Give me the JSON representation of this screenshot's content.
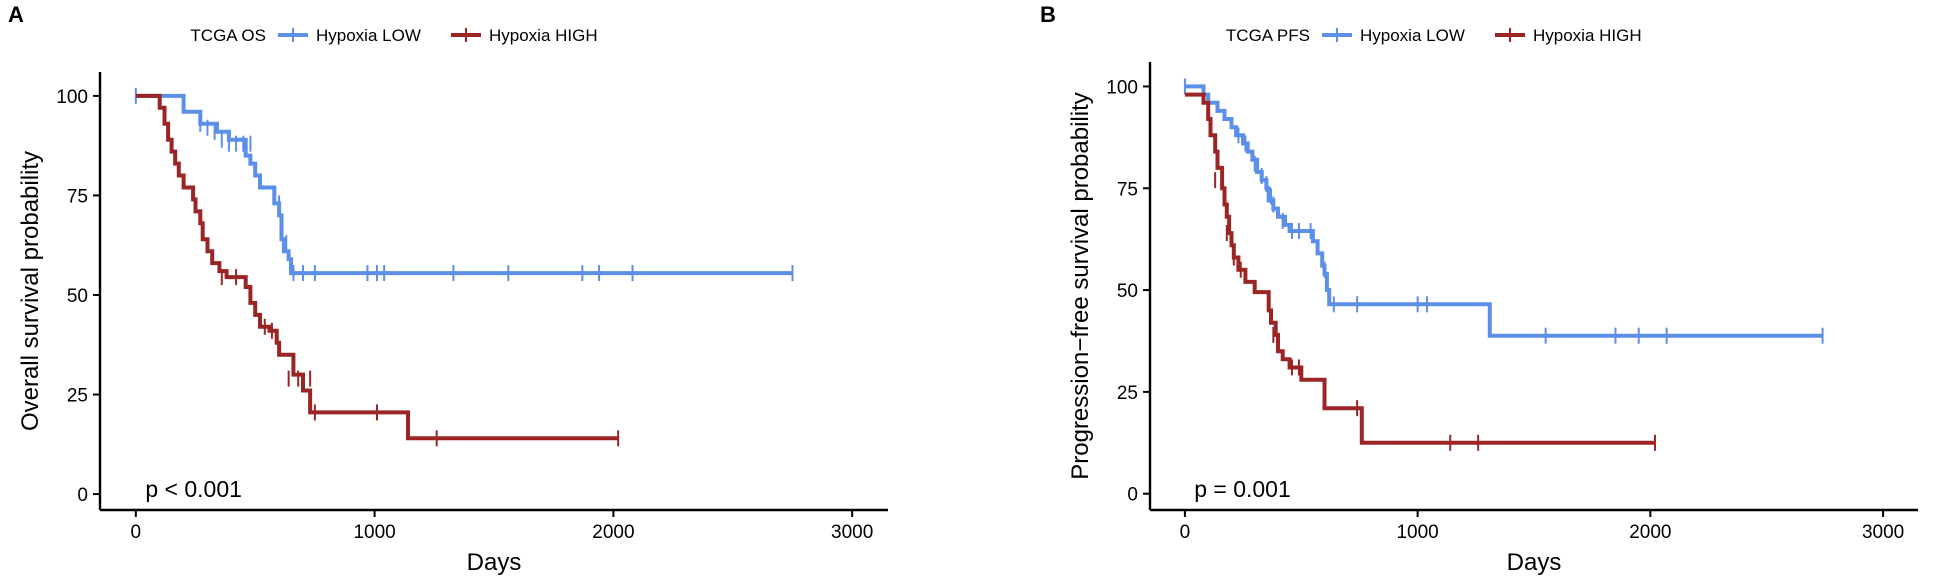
{
  "colors": {
    "low": "#5B8FE8",
    "high": "#9B2424",
    "axis": "#000000"
  },
  "chart_data": [
    {
      "type": "line",
      "panel_label": "A",
      "legend_title": "TCGA OS",
      "title": "",
      "xlabel": "Days",
      "ylabel": "Overall survival probability",
      "xlim": [
        -150,
        3150
      ],
      "ylim": [
        -4,
        106
      ],
      "xticks": [
        0,
        1000,
        2000,
        3000
      ],
      "yticks": [
        0,
        25,
        50,
        75,
        100
      ],
      "annotation": "p < 0.001",
      "series": [
        {
          "name": "Hypoxia LOW",
          "steps": [
            [
              0,
              100
            ],
            [
              200,
              100
            ],
            [
              200,
              96
            ],
            [
              270,
              96
            ],
            [
              270,
              93
            ],
            [
              340,
              93
            ],
            [
              340,
              91
            ],
            [
              390,
              91
            ],
            [
              390,
              89
            ],
            [
              460,
              89
            ],
            [
              460,
              85
            ],
            [
              480,
              85
            ],
            [
              480,
              83
            ],
            [
              500,
              83
            ],
            [
              500,
              80
            ],
            [
              520,
              80
            ],
            [
              520,
              77
            ],
            [
              580,
              77
            ],
            [
              580,
              73
            ],
            [
              600,
              73
            ],
            [
              600,
              70
            ],
            [
              610,
              70
            ],
            [
              610,
              64
            ],
            [
              620,
              64
            ],
            [
              620,
              61
            ],
            [
              640,
              61
            ],
            [
              640,
              59
            ],
            [
              650,
              59
            ],
            [
              650,
              55.5
            ],
            [
              2750,
              55.5
            ]
          ],
          "censor": [
            [
              0,
              100
            ],
            [
              270,
              93
            ],
            [
              300,
              92
            ],
            [
              330,
              91
            ],
            [
              360,
              89
            ],
            [
              390,
              88
            ],
            [
              420,
              88
            ],
            [
              450,
              88
            ],
            [
              480,
              88
            ],
            [
              600,
              73
            ],
            [
              630,
              63
            ],
            [
              660,
              55.5
            ],
            [
              700,
              55.5
            ],
            [
              750,
              55.5
            ],
            [
              970,
              55.5
            ],
            [
              1010,
              55.5
            ],
            [
              1040,
              55.5
            ],
            [
              1330,
              55.5
            ],
            [
              1560,
              55.5
            ],
            [
              1870,
              55.5
            ],
            [
              1940,
              55.5
            ],
            [
              2080,
              55.5
            ],
            [
              2750,
              55.5
            ]
          ]
        },
        {
          "name": "Hypoxia HIGH",
          "steps": [
            [
              0,
              100
            ],
            [
              100,
              100
            ],
            [
              100,
              97
            ],
            [
              120,
              97
            ],
            [
              120,
              93
            ],
            [
              135,
              93
            ],
            [
              135,
              89
            ],
            [
              150,
              89
            ],
            [
              150,
              86
            ],
            [
              165,
              86
            ],
            [
              165,
              83
            ],
            [
              180,
              83
            ],
            [
              180,
              80
            ],
            [
              200,
              80
            ],
            [
              200,
              77
            ],
            [
              240,
              77
            ],
            [
              240,
              74
            ],
            [
              250,
              74
            ],
            [
              250,
              71
            ],
            [
              270,
              71
            ],
            [
              270,
              68
            ],
            [
              280,
              68
            ],
            [
              280,
              64
            ],
            [
              300,
              64
            ],
            [
              300,
              61
            ],
            [
              320,
              61
            ],
            [
              320,
              58
            ],
            [
              350,
              58
            ],
            [
              350,
              56
            ],
            [
              380,
              56
            ],
            [
              380,
              54.5
            ],
            [
              460,
              54.5
            ],
            [
              460,
              52
            ],
            [
              480,
              52
            ],
            [
              480,
              48
            ],
            [
              500,
              48
            ],
            [
              500,
              45
            ],
            [
              520,
              45
            ],
            [
              520,
              42
            ],
            [
              560,
              42
            ],
            [
              560,
              41
            ],
            [
              590,
              41
            ],
            [
              590,
              38
            ],
            [
              600,
              38
            ],
            [
              600,
              35
            ],
            [
              660,
              35
            ],
            [
              660,
              30
            ],
            [
              700,
              30
            ],
            [
              700,
              26
            ],
            [
              730,
              26
            ],
            [
              730,
              20.5
            ],
            [
              1140,
              20.5
            ],
            [
              1140,
              14
            ],
            [
              2020,
              14
            ]
          ],
          "censor": [
            [
              360,
              54.5
            ],
            [
              420,
              54.5
            ],
            [
              540,
              42
            ],
            [
              570,
              41
            ],
            [
              640,
              29
            ],
            [
              680,
              29
            ],
            [
              730,
              29
            ],
            [
              750,
              20.5
            ],
            [
              1010,
              20.5
            ],
            [
              1260,
              14
            ],
            [
              2020,
              14
            ]
          ]
        }
      ]
    },
    {
      "type": "line",
      "panel_label": "B",
      "legend_title": "TCGA PFS",
      "title": "",
      "xlabel": "Days",
      "ylabel": "Progression−free survival probability",
      "xlim": [
        -150,
        3150
      ],
      "ylim": [
        -4,
        106
      ],
      "xticks": [
        0,
        1000,
        2000,
        3000
      ],
      "yticks": [
        0,
        25,
        50,
        75,
        100
      ],
      "annotation": "p = 0.001",
      "series": [
        {
          "name": "Hypoxia LOW",
          "steps": [
            [
              0,
              100
            ],
            [
              80,
              100
            ],
            [
              80,
              98
            ],
            [
              100,
              98
            ],
            [
              100,
              96
            ],
            [
              140,
              96
            ],
            [
              140,
              94
            ],
            [
              170,
              94
            ],
            [
              170,
              92
            ],
            [
              200,
              92
            ],
            [
              200,
              90
            ],
            [
              220,
              90
            ],
            [
              220,
              88
            ],
            [
              250,
              88
            ],
            [
              250,
              86
            ],
            [
              270,
              86
            ],
            [
              270,
              84
            ],
            [
              290,
              84
            ],
            [
              290,
              82
            ],
            [
              310,
              82
            ],
            [
              310,
              79
            ],
            [
              330,
              79
            ],
            [
              330,
              77
            ],
            [
              350,
              77
            ],
            [
              350,
              75
            ],
            [
              360,
              75
            ],
            [
              360,
              72
            ],
            [
              380,
              72
            ],
            [
              380,
              70
            ],
            [
              400,
              70
            ],
            [
              400,
              68
            ],
            [
              430,
              68
            ],
            [
              430,
              66
            ],
            [
              450,
              66
            ],
            [
              450,
              64.5
            ],
            [
              550,
              64.5
            ],
            [
              550,
              62
            ],
            [
              570,
              62
            ],
            [
              570,
              59
            ],
            [
              590,
              59
            ],
            [
              590,
              56
            ],
            [
              600,
              56
            ],
            [
              600,
              54
            ],
            [
              610,
              54
            ],
            [
              610,
              50
            ],
            [
              620,
              50
            ],
            [
              620,
              46.5
            ],
            [
              1310,
              46.5
            ],
            [
              1310,
              38.8
            ],
            [
              2740,
              38.8
            ]
          ],
          "censor": [
            [
              0,
              100
            ],
            [
              230,
              88
            ],
            [
              260,
              86
            ],
            [
              300,
              81
            ],
            [
              330,
              78
            ],
            [
              350,
              76
            ],
            [
              370,
              73
            ],
            [
              380,
              71
            ],
            [
              420,
              67
            ],
            [
              460,
              64.5
            ],
            [
              490,
              64.5
            ],
            [
              540,
              64.5
            ],
            [
              600,
              55
            ],
            [
              640,
              46.5
            ],
            [
              740,
              46.5
            ],
            [
              1000,
              46.5
            ],
            [
              1040,
              46.5
            ],
            [
              1550,
              38.8
            ],
            [
              1850,
              38.8
            ],
            [
              1950,
              38.8
            ],
            [
              2070,
              38.8
            ],
            [
              2740,
              38.8
            ]
          ]
        },
        {
          "name": "Hypoxia HIGH",
          "steps": [
            [
              0,
              98
            ],
            [
              80,
              98
            ],
            [
              80,
              96
            ],
            [
              100,
              96
            ],
            [
              100,
              92
            ],
            [
              110,
              92
            ],
            [
              110,
              88
            ],
            [
              130,
              88
            ],
            [
              130,
              84
            ],
            [
              140,
              84
            ],
            [
              140,
              80
            ],
            [
              160,
              80
            ],
            [
              160,
              75
            ],
            [
              170,
              75
            ],
            [
              170,
              71
            ],
            [
              180,
              71
            ],
            [
              180,
              68
            ],
            [
              190,
              68
            ],
            [
              190,
              64
            ],
            [
              200,
              64
            ],
            [
              200,
              61
            ],
            [
              210,
              61
            ],
            [
              210,
              58
            ],
            [
              230,
              58
            ],
            [
              230,
              55
            ],
            [
              260,
              55
            ],
            [
              260,
              52
            ],
            [
              300,
              52
            ],
            [
              300,
              49.5
            ],
            [
              360,
              49.5
            ],
            [
              360,
              45
            ],
            [
              370,
              45
            ],
            [
              370,
              42
            ],
            [
              390,
              42
            ],
            [
              390,
              39
            ],
            [
              400,
              39
            ],
            [
              400,
              35
            ],
            [
              420,
              35
            ],
            [
              420,
              33
            ],
            [
              450,
              33
            ],
            [
              450,
              31
            ],
            [
              500,
              31
            ],
            [
              500,
              28
            ],
            [
              600,
              28
            ],
            [
              600,
              21
            ],
            [
              760,
              21
            ],
            [
              760,
              12.5
            ],
            [
              2020,
              12.5
            ]
          ],
          "censor": [
            [
              130,
              77
            ],
            [
              180,
              64
            ],
            [
              210,
              58
            ],
            [
              240,
              55
            ],
            [
              380,
              39
            ],
            [
              460,
              31
            ],
            [
              490,
              31
            ],
            [
              740,
              21
            ],
            [
              1140,
              12.5
            ],
            [
              1260,
              12.5
            ],
            [
              2020,
              12.5
            ]
          ]
        }
      ]
    }
  ]
}
